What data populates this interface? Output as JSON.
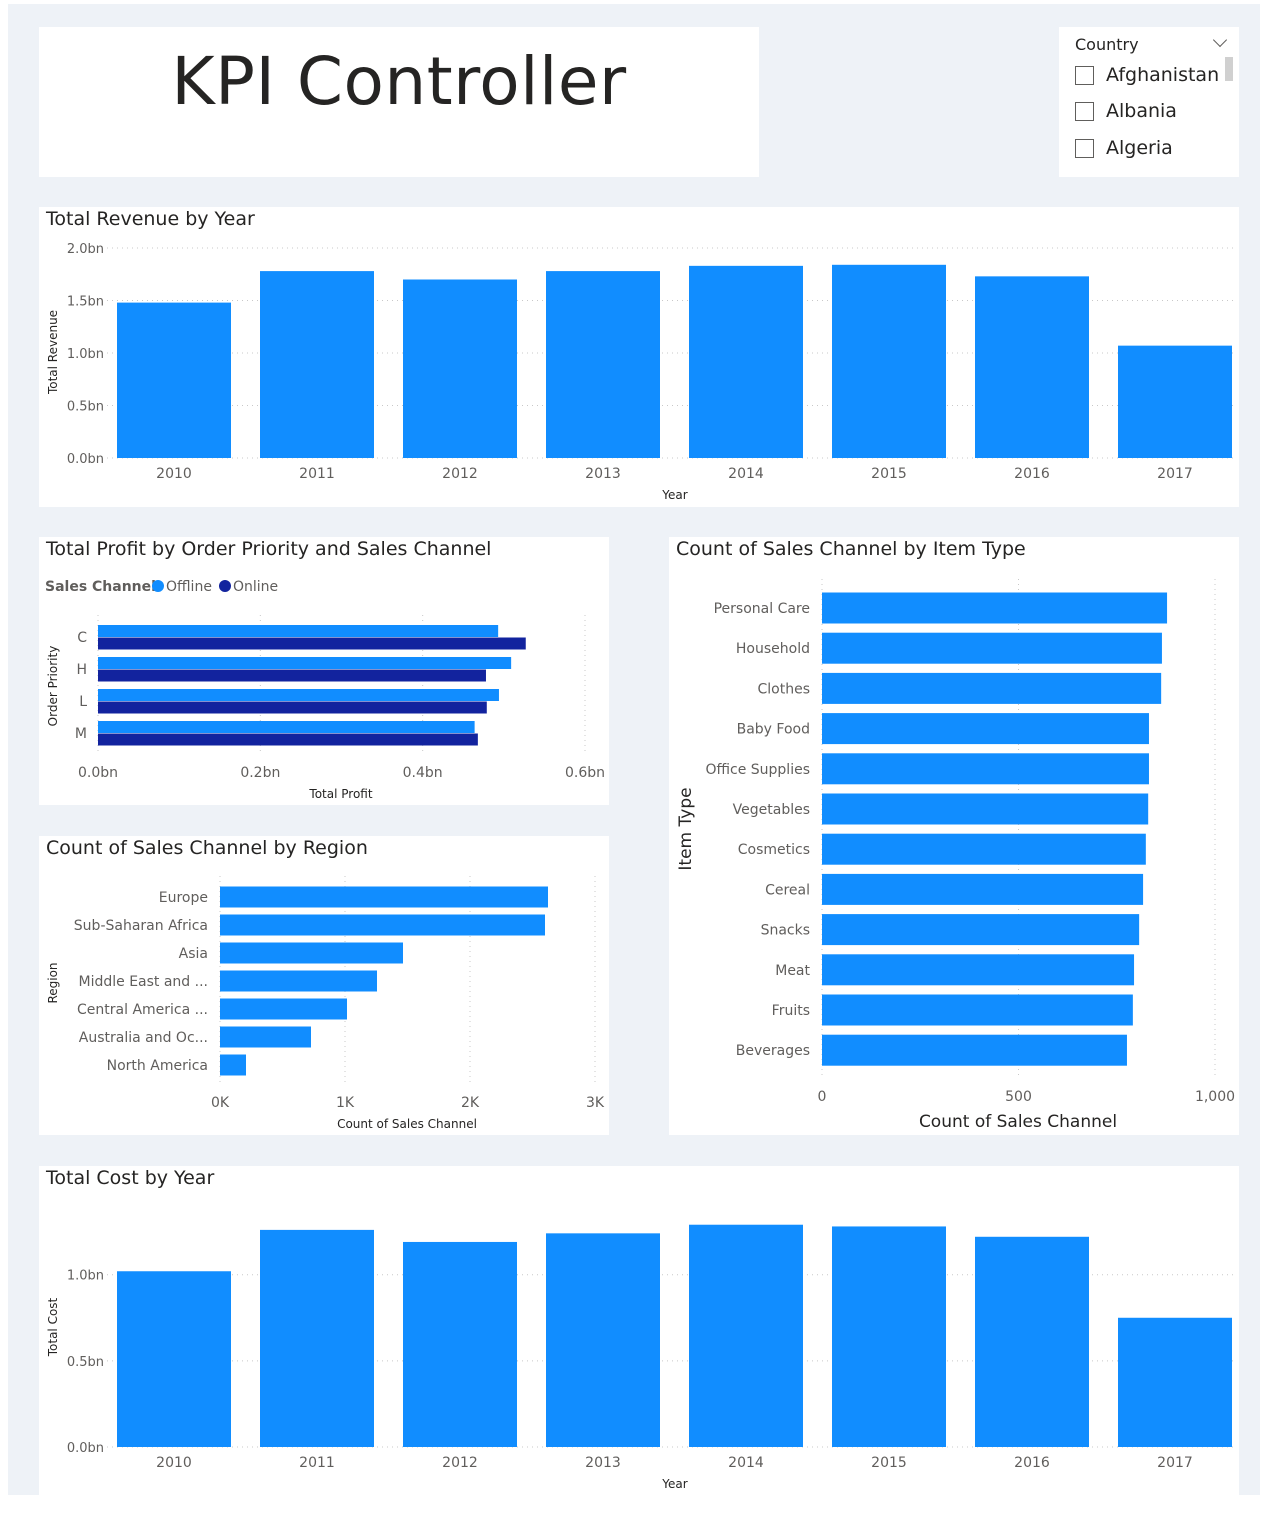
{
  "title": "KPI Controller",
  "slicer": {
    "label": "Country",
    "items": [
      "Afghanistan",
      "Albania",
      "Algeria"
    ]
  },
  "colors": {
    "offline": "#118dff",
    "online": "#12239e",
    "bar": "#118dff"
  },
  "chart_data": [
    {
      "id": "revenue",
      "type": "bar",
      "title": "Total Revenue by Year",
      "xlabel": "Year",
      "ylabel": "Total Revenue",
      "categories": [
        "2010",
        "2011",
        "2012",
        "2013",
        "2014",
        "2015",
        "2016",
        "2017"
      ],
      "values": [
        1.48,
        1.78,
        1.7,
        1.78,
        1.83,
        1.84,
        1.73,
        1.07
      ],
      "unit": "bn",
      "ylim": [
        0,
        2.0
      ],
      "ticks": [
        "0.0bn",
        "0.5bn",
        "1.0bn",
        "1.5bn",
        "2.0bn"
      ],
      "grid": true
    },
    {
      "id": "profit",
      "type": "bar",
      "orientation": "horizontal",
      "title": "Total Profit by Order Priority and Sales Channel",
      "legend_title": "Sales Channel",
      "legend": "top-left",
      "xlabel": "Total Profit",
      "ylabel": "Order Priority",
      "categories": [
        "C",
        "H",
        "L",
        "M"
      ],
      "series": [
        {
          "name": "Offline",
          "values": [
            0.493,
            0.509,
            0.494,
            0.464
          ]
        },
        {
          "name": "Online",
          "values": [
            0.527,
            0.478,
            0.479,
            0.468
          ]
        }
      ],
      "xlim": [
        0,
        0.6
      ],
      "ticks": [
        "0.0bn",
        "0.2bn",
        "0.4bn",
        "0.6bn"
      ],
      "grid": true
    },
    {
      "id": "region",
      "type": "bar",
      "orientation": "horizontal",
      "title": "Count of Sales Channel by Region",
      "xlabel": "Count of Sales Channel",
      "ylabel": "Region",
      "categories": [
        "Europe",
        "Sub-Saharan Africa",
        "Asia",
        "Middle East and ...",
        "Central America ...",
        "Australia and Oc...",
        "North America"
      ],
      "values": [
        2624,
        2600,
        1464,
        1256,
        1016,
        728,
        208
      ],
      "xlim": [
        0,
        3000
      ],
      "ticks": [
        "0K",
        "1K",
        "2K",
        "3K"
      ],
      "grid": true
    },
    {
      "id": "itemtype",
      "type": "bar",
      "orientation": "horizontal",
      "title": "Count of Sales Channel by Item Type",
      "xlabel": "Count of Sales Channel",
      "ylabel": "Item Type",
      "categories": [
        "Personal Care",
        "Household",
        "Clothes",
        "Baby Food",
        "Office Supplies",
        "Vegetables",
        "Cosmetics",
        "Cereal",
        "Snacks",
        "Meat",
        "Fruits",
        "Beverages"
      ],
      "values": [
        878,
        865,
        863,
        832,
        832,
        830,
        824,
        817,
        807,
        794,
        791,
        776
      ],
      "xlim": [
        0,
        1000
      ],
      "ticks": [
        "0",
        "500",
        "1,000"
      ],
      "grid": true
    },
    {
      "id": "cost",
      "type": "bar",
      "title": "Total Cost by Year",
      "xlabel": "Year",
      "ylabel": "Total Cost",
      "categories": [
        "2010",
        "2011",
        "2012",
        "2013",
        "2014",
        "2015",
        "2016",
        "2017"
      ],
      "values": [
        1.02,
        1.26,
        1.19,
        1.24,
        1.29,
        1.28,
        1.22,
        0.75
      ],
      "unit": "bn",
      "ylim": [
        0,
        1.3
      ],
      "ticks": [
        "0.0bn",
        "0.5bn",
        "1.0bn"
      ],
      "tick_values": [
        0,
        0.5,
        1.0
      ],
      "grid": true
    }
  ]
}
